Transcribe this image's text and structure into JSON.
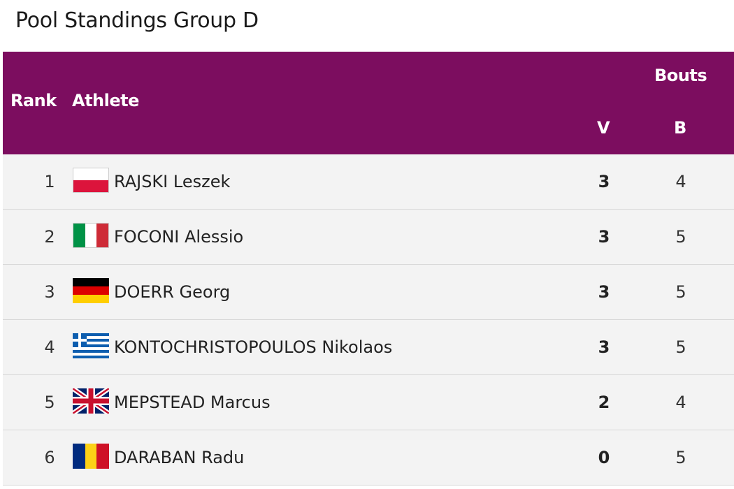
{
  "page": {
    "title": "Pool Standings Group D"
  },
  "table": {
    "headers": {
      "rank": "Rank",
      "athlete": "Athlete",
      "bouts": "Bouts",
      "v": "V",
      "b": "B"
    },
    "rows": [
      {
        "rank": "1",
        "flag": "poland-flag-icon",
        "name": "RAJSKI Leszek",
        "v": "3",
        "b": "4"
      },
      {
        "rank": "2",
        "flag": "italy-flag-icon",
        "name": "FOCONI Alessio",
        "v": "3",
        "b": "5"
      },
      {
        "rank": "3",
        "flag": "germany-flag-icon",
        "name": "DOERR Georg",
        "v": "3",
        "b": "5"
      },
      {
        "rank": "4",
        "flag": "greece-flag-icon",
        "name": "KONTOCHRISTOPOULOS Nikolaos",
        "v": "3",
        "b": "5"
      },
      {
        "rank": "5",
        "flag": "great-britain-flag-icon",
        "name": "MEPSTEAD Marcus",
        "v": "2",
        "b": "4"
      },
      {
        "rank": "6",
        "flag": "romania-flag-icon",
        "name": "DARABAN Radu",
        "v": "0",
        "b": "5"
      }
    ]
  },
  "colors": {
    "header_bg": "#7c0d5f",
    "row_bg": "#f3f3f3",
    "header_text": "#ffffff"
  }
}
